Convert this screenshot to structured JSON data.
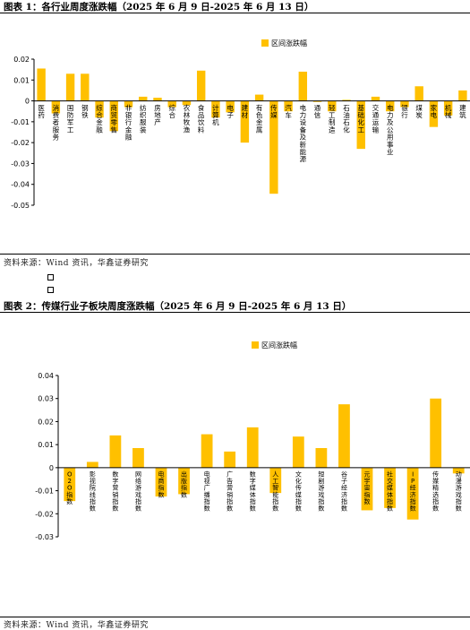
{
  "figure1": {
    "title": "图表 1：各行业周度涨跌幅（2025 年 6 月 9 日-2025 年 6 月 13 日）",
    "source": "资料来源：Wind 资讯，华鑫证券研究"
  },
  "figure2": {
    "title": "图表 2：传媒行业子板块周度涨跌幅（2025 年 6 月 9 日-2025 年 6 月 13 日）",
    "source": "资料来源：Wind 资讯，华鑫证券研究"
  },
  "colors": {
    "bar": "#FFC000",
    "axis": "#000000"
  },
  "chart_data": [
    {
      "type": "bar",
      "title": "",
      "legend": "区间涨跌幅",
      "legend_position": "top-right",
      "ylim": [
        -0.05,
        0.02
      ],
      "yticks": [
        0.02,
        0.01,
        0,
        -0.01,
        -0.02,
        -0.03,
        -0.04,
        -0.05
      ],
      "ytick_labels": [
        "0.02",
        "0.01",
        "0",
        "-0.01",
        "-0.02",
        "-0.03",
        "-0.04",
        "-0.05"
      ],
      "grid": false,
      "categories": [
        "医药",
        "消费者服务",
        "国防军工",
        "纺织服装",
        "商贸零售",
        "钢铁",
        "综合金融",
        "房地产",
        "农林牧渔",
        "食品饮料",
        "传媒",
        "银行",
        "煤炭",
        "电力设备及新能源",
        "建筑",
        "机械",
        "轻工制造",
        "计算机",
        "电子",
        "基础化工",
        "建材",
        "交通运输",
        "电力及公用事业",
        "通信",
        "石油石化",
        "有色金属",
        "汽车",
        "家电",
        "非银行金融",
        "综合"
      ],
      "values": [
        0.0155,
        -0.006,
        0.013,
        0.002,
        -0.0145,
        0.013,
        -0.008,
        0.0015,
        -0.002,
        0.0145,
        -0.0445,
        -0.003,
        0.007,
        0.014,
        0.005,
        -0.007,
        -0.005,
        -0.008,
        -0.0055,
        -0.023,
        -0.02,
        0.002,
        -0.005,
        -0.0005,
        0.0005,
        0.003,
        -0.005,
        -0.0125,
        -0.003,
        -0.003
      ],
      "visible_labels": [
        "医药",
        "消费者服务",
        "国防军工",
        "钢铁",
        "综合金融",
        "商贸零售",
        "非银行金融",
        "纺织服装",
        "房地产",
        "综合",
        "农林牧渔",
        "食品饮料",
        "计算机",
        "电子",
        "建材",
        "有色金属",
        "传媒",
        "汽车",
        "电力设备及新能源",
        "通信",
        "轻工制造",
        "石油石化",
        "基础化工",
        "交通运输",
        "电力及公用事业",
        "银行",
        "煤炭",
        "家电",
        "机械",
        "建筑"
      ]
    },
    {
      "type": "bar",
      "title": "",
      "legend": "区间涨跌幅",
      "legend_position": "top-right",
      "ylim": [
        -0.03,
        0.04
      ],
      "yticks": [
        0.04,
        0.03,
        0.02,
        0.01,
        0,
        -0.01,
        -0.02,
        -0.03
      ],
      "ytick_labels": [
        "0.04",
        "0.03",
        "0.02",
        "0.01",
        "0",
        "-0.01",
        "-0.02",
        "-0.03"
      ],
      "grid": false,
      "categories": [
        "O2O指数",
        "影视院线指数",
        "数字营销指数",
        "网络游戏指数",
        "电商指数",
        "出版指数",
        "电视广播指数",
        "广告营销指数",
        "数字媒体指数",
        "人工智能指数",
        "文化传媒指数",
        "短剧游戏指数",
        "谷子经济指数",
        "元宇宙指数",
        "社交媒体指数",
        "IP经济指数",
        "传媒精选指数",
        "动漫游戏指数"
      ],
      "values": [
        -0.0145,
        0.0025,
        0.014,
        0.0085,
        -0.0125,
        -0.0115,
        0.0145,
        0.007,
        0.0175,
        -0.011,
        0.0135,
        0.0085,
        0.0275,
        -0.0185,
        -0.0175,
        -0.0225,
        0.03,
        -0.0025
      ],
      "visible_labels": [
        "O2O指数",
        "影视院线指数",
        "数字营销指数",
        "网络游戏指数",
        "电商指数",
        "出版指数",
        "电视广播指数",
        "广告营销指数",
        "数字媒体指数",
        "人工智能指数",
        "文化传媒指数",
        "短剧游戏指数",
        "谷子经济指数",
        "元宇宙指数",
        "社交媒体指数",
        "IP经济指数",
        "传媒精选指数",
        "动漫游戏指数"
      ]
    }
  ]
}
